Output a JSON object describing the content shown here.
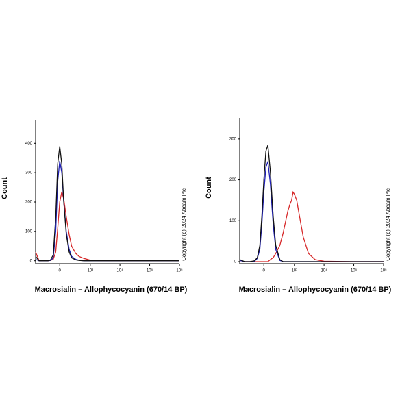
{
  "chart_data": [
    {
      "type": "line",
      "xscale": "biexponential",
      "y_label": "Count",
      "x_label": "Macrosialin – Allophycocyanin (670/14 BP)",
      "annotation": "Copyright (c) 2024 Abcam Plc",
      "xlim": [
        -600,
        1000000
      ],
      "ylim": [
        -10,
        480
      ],
      "xticks": [
        0,
        {
          "value": 1000,
          "label": "10³"
        },
        {
          "value": 10000,
          "label": "10⁴"
        },
        {
          "value": 100000,
          "label": "10⁵"
        },
        {
          "value": 1000000,
          "label": "10⁶"
        }
      ],
      "yticks": [
        0,
        100,
        200,
        300,
        400
      ],
      "x": [
        -600,
        -450,
        -300,
        -200,
        -150,
        -100,
        -60,
        -30,
        0,
        30,
        60,
        100,
        150,
        200,
        300,
        400,
        600,
        800,
        1000,
        1500,
        3000,
        10000,
        100000,
        1000000
      ],
      "series": [
        {
          "color": "#d62728",
          "values": [
            30,
            0,
            0,
            0,
            1,
            5,
            30,
            110,
            200,
            235,
            210,
            150,
            90,
            50,
            25,
            15,
            8,
            5,
            2,
            1,
            0,
            0,
            0,
            0
          ]
        },
        {
          "color": "#1f1fb4",
          "values": [
            5,
            0,
            0,
            0,
            1,
            10,
            100,
            270,
            340,
            300,
            200,
            100,
            40,
            15,
            5,
            2,
            0,
            0,
            0,
            0,
            0,
            0,
            0,
            0
          ]
        },
        {
          "color": "#111111",
          "values": [
            15,
            0,
            0,
            0,
            2,
            20,
            150,
            330,
            390,
            330,
            200,
            90,
            30,
            10,
            3,
            1,
            0,
            0,
            0,
            0,
            0,
            0,
            0,
            0
          ]
        }
      ]
    },
    {
      "type": "line",
      "xscale": "biexponential",
      "y_label": "Count",
      "x_label": "Macrosialin – Allophycocyanin (670/14 BP)",
      "annotation": "Copyright (c) 2024 Abcam Plc",
      "xlim": [
        -600,
        1000000
      ],
      "ylim": [
        -5,
        350
      ],
      "xticks": [
        0,
        {
          "value": 1000,
          "label": "10³"
        },
        {
          "value": 10000,
          "label": "10⁴"
        },
        {
          "value": 100000,
          "label": "10⁵"
        },
        {
          "value": 1000000,
          "label": "10⁶"
        }
      ],
      "yticks": [
        0,
        100,
        200,
        300
      ],
      "x": [
        -600,
        -400,
        -250,
        -150,
        -100,
        -60,
        -30,
        0,
        30,
        60,
        100,
        150,
        200,
        300,
        400,
        500,
        600,
        700,
        800,
        900,
        1000,
        1200,
        1500,
        2000,
        3000,
        5000,
        10000,
        100000,
        1000000
      ],
      "series": [
        {
          "color": "#d62728",
          "values": [
            3,
            0,
            0,
            0,
            0,
            0,
            0,
            0,
            0,
            0,
            5,
            10,
            20,
            40,
            70,
            100,
            125,
            140,
            150,
            170,
            165,
            150,
            110,
            60,
            20,
            5,
            1,
            0,
            0
          ]
        },
        {
          "color": "#1f1fb4",
          "values": [
            3,
            0,
            0,
            1,
            8,
            30,
            90,
            170,
            230,
            245,
            190,
            90,
            30,
            3,
            0,
            0,
            0,
            0,
            0,
            0,
            0,
            0,
            0,
            0,
            0,
            0,
            0,
            0,
            0
          ]
        },
        {
          "color": "#111111",
          "values": [
            5,
            0,
            0,
            2,
            10,
            40,
            110,
            200,
            270,
            285,
            220,
            110,
            40,
            5,
            0,
            0,
            0,
            0,
            0,
            0,
            0,
            0,
            0,
            0,
            0,
            0,
            0,
            0,
            0
          ]
        }
      ]
    }
  ]
}
